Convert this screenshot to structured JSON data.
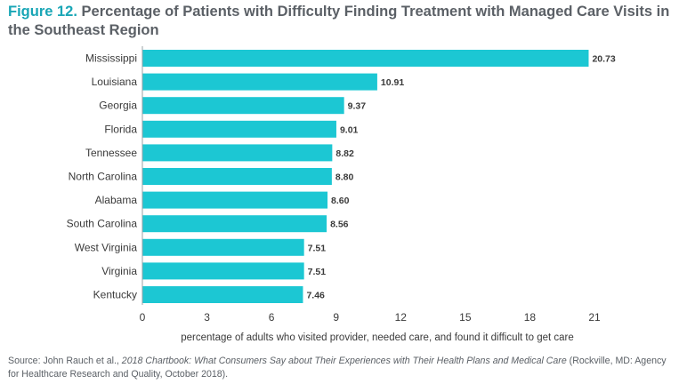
{
  "title": {
    "figure_label": "Figure 12.",
    "text": "Percentage of Patients with Difficulty Finding Treatment with Managed Care Visits in the Southeast Region"
  },
  "source": {
    "prefix": "Source: John Rauch et al., ",
    "italic": "2018 Chartbook: What Consumers Say about Their Experiences with Their Health Plans and Medical Care",
    "suffix": " (Rockville, MD: Agency for Healthcare Research and Quality, October 2018)."
  },
  "colors": {
    "bar": "#1cc7d3",
    "figure_label": "#19a6b6",
    "text": "#3a3a3a",
    "axis": "#9aa0a6"
  },
  "chart_data": {
    "type": "bar",
    "orientation": "horizontal",
    "categories": [
      "Mississippi",
      "Louisiana",
      "Georgia",
      "Florida",
      "Tennessee",
      "North Carolina",
      "Alabama",
      "South Carolina",
      "West Virginia",
      "Virginia",
      "Kentucky"
    ],
    "values": [
      20.73,
      10.91,
      9.37,
      9.01,
      8.82,
      8.8,
      8.6,
      8.56,
      7.51,
      7.51,
      7.46
    ],
    "value_labels": [
      "20.73",
      "10.91",
      "9.37",
      "9.01",
      "8.82",
      "8.80",
      "8.60",
      "8.56",
      "7.51",
      "7.51",
      "7.46"
    ],
    "xlabel": "percentage of adults who visited provider, needed care, and found it difficult to get care",
    "xticks": [
      0,
      3,
      6,
      9,
      12,
      15,
      18,
      21
    ],
    "xlim": [
      0,
      21
    ],
    "grid": false
  }
}
